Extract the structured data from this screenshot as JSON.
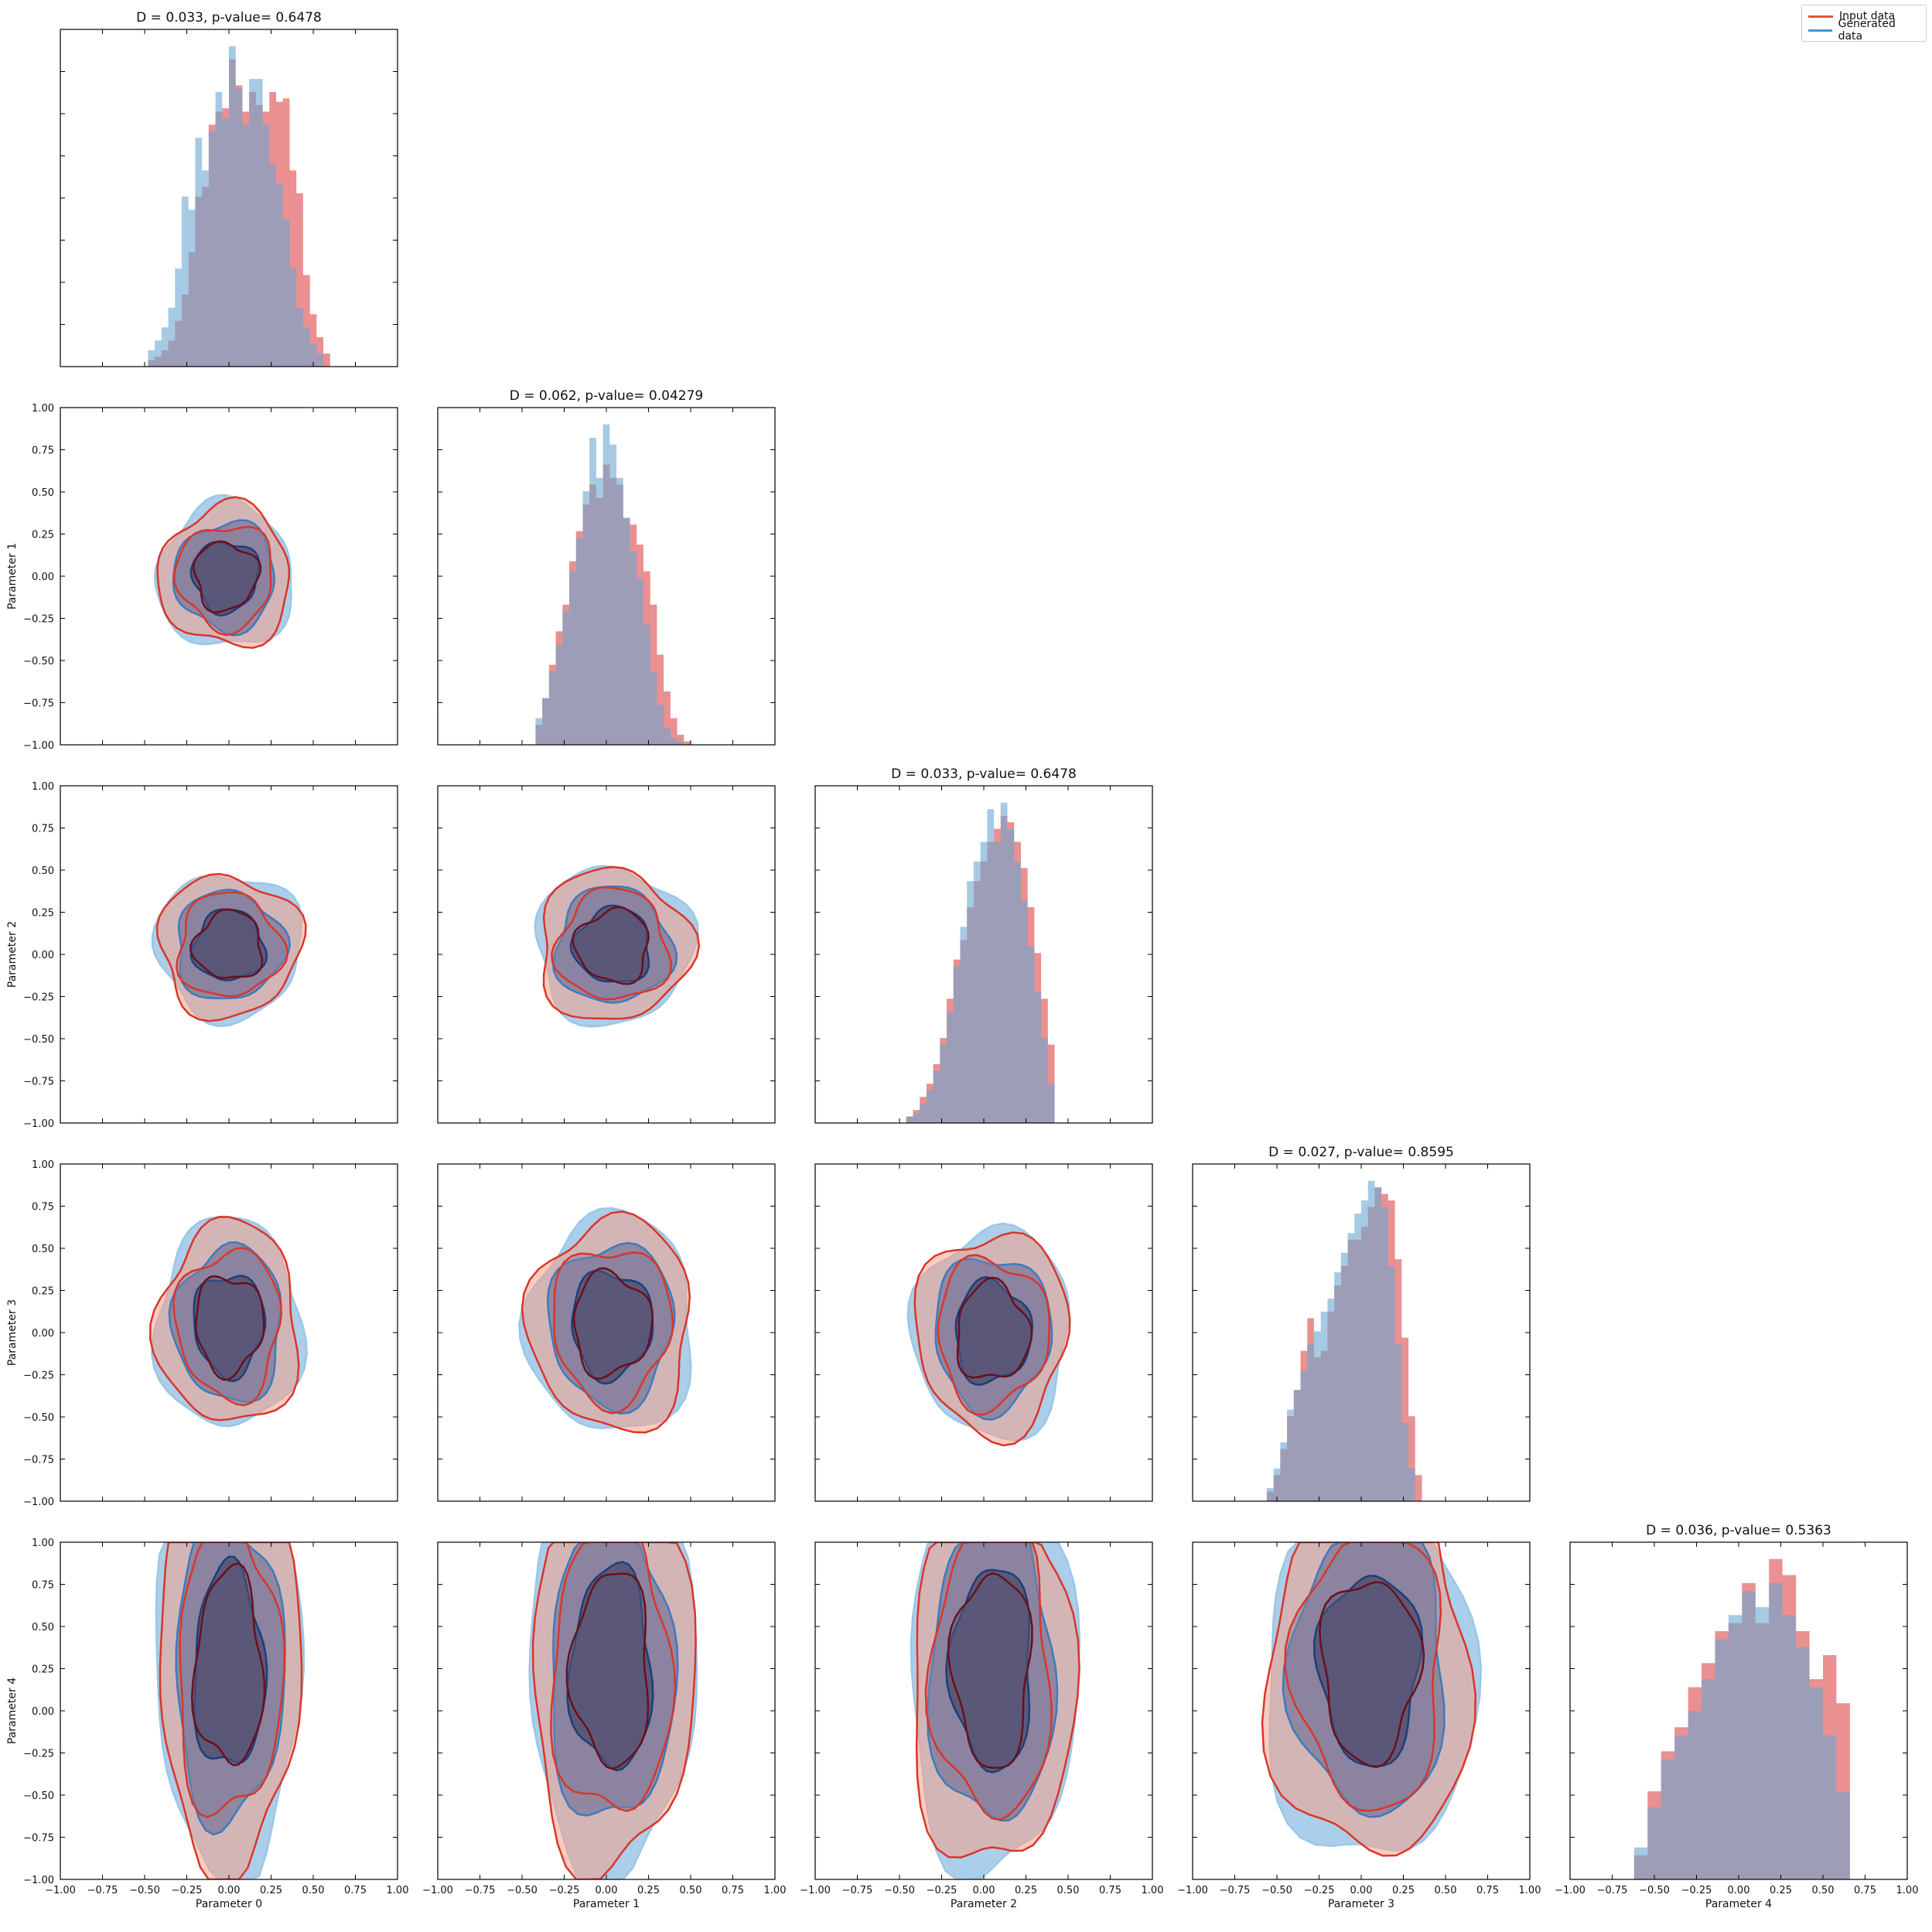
{
  "figure": {
    "legend": [
      {
        "label": "Input data",
        "color": "#e8523a"
      },
      {
        "label": "Generated data",
        "color": "#4a94cc"
      }
    ],
    "axis_labels": [
      "Parameter 0",
      "Parameter 1",
      "Parameter 2",
      "Parameter 3",
      "Parameter 4"
    ],
    "diagonal_titles": [
      "D = 0.033, p-value= 0.6478",
      "D = 0.062, p-value= 0.04279",
      "D = 0.033, p-value= 0.6478",
      "D = 0.027, p-value= 0.8595",
      "D = 0.036, p-value= 0.5363"
    ],
    "tick_labels": [
      "−1.00",
      "−0.75",
      "−0.50",
      "−0.25",
      "0.00",
      "0.25",
      "0.50",
      "0.75",
      "1.00"
    ],
    "colors": {
      "input_hist": "#e67c7c",
      "generated_hist": "#6aa6d2",
      "overlap": "#857f9e",
      "input_contour_light": "#f5a08a",
      "input_contour_mid": "#d9362a",
      "input_contour_dark": "#6b0f1a",
      "gen_contour_light": "#9cc6e6",
      "gen_contour_mid": "#3c7bbd",
      "gen_contour_dark": "#1b3f78",
      "core_fill": "#5a5577"
    }
  },
  "chart_data": {
    "type": "corner",
    "n_params": 5,
    "xlim": [
      -1,
      1
    ],
    "ylim": [
      -1,
      1
    ],
    "ticks": [
      -1,
      -0.75,
      -0.5,
      -0.25,
      0,
      0.25,
      0.5,
      0.75,
      1
    ],
    "diagonal": [
      {
        "param": "Parameter 0",
        "bin_width": 0.04,
        "input": [
          0.02,
          0.03,
          0.05,
          0.08,
          0.14,
          0.22,
          0.35,
          0.52,
          0.55,
          0.74,
          0.78,
          0.79,
          0.94,
          0.86,
          0.78,
          0.84,
          0.8,
          0.78,
          0.84,
          0.81,
          0.82,
          0.6,
          0.53,
          0.28,
          0.16,
          0.09,
          0.04
        ],
        "generated": [
          0.05,
          0.08,
          0.12,
          0.18,
          0.3,
          0.52,
          0.48,
          0.7,
          0.6,
          0.72,
          0.84,
          0.76,
          0.98,
          0.85,
          0.74,
          0.88,
          0.88,
          0.74,
          0.62,
          0.56,
          0.45,
          0.3,
          0.18,
          0.12,
          0.07,
          0.04
        ],
        "x_start": -0.48
      },
      {
        "param": "Parameter 1",
        "bin_width": 0.04,
        "input": [
          0.06,
          0.14,
          0.24,
          0.34,
          0.42,
          0.55,
          0.64,
          0.72,
          0.78,
          0.74,
          0.84,
          0.8,
          0.78,
          0.68,
          0.66,
          0.6,
          0.52,
          0.42,
          0.27,
          0.16,
          0.08,
          0.03,
          0.01
        ],
        "generated": [
          0.08,
          0.14,
          0.22,
          0.3,
          0.4,
          0.52,
          0.62,
          0.76,
          0.92,
          0.8,
          0.96,
          0.9,
          0.8,
          0.68,
          0.58,
          0.5,
          0.36,
          0.22,
          0.12,
          0.05,
          0.02,
          0.01
        ],
        "x_start": -0.42
      },
      {
        "param": "Parameter 2",
        "bin_width": 0.04,
        "input": [
          0.02,
          0.04,
          0.08,
          0.12,
          0.18,
          0.26,
          0.38,
          0.5,
          0.56,
          0.66,
          0.74,
          0.8,
          0.86,
          0.9,
          0.94,
          0.92,
          0.86,
          0.78,
          0.66,
          0.52,
          0.38,
          0.24
        ],
        "generated": [
          0.02,
          0.03,
          0.06,
          0.1,
          0.16,
          0.24,
          0.34,
          0.48,
          0.6,
          0.74,
          0.8,
          0.86,
          0.96,
          0.86,
          0.98,
          0.9,
          0.8,
          0.68,
          0.54,
          0.4,
          0.26,
          0.12
        ],
        "x_start": -0.46
      },
      {
        "param": "Parameter 3",
        "bin_width": 0.04,
        "input": [
          0.03,
          0.08,
          0.16,
          0.26,
          0.34,
          0.46,
          0.56,
          0.44,
          0.46,
          0.58,
          0.66,
          0.72,
          0.8,
          0.8,
          0.84,
          0.9,
          0.96,
          0.94,
          0.92,
          0.74,
          0.5,
          0.26,
          0.08
        ],
        "generated": [
          0.04,
          0.1,
          0.18,
          0.28,
          0.34,
          0.4,
          0.48,
          0.52,
          0.58,
          0.62,
          0.7,
          0.76,
          0.82,
          0.88,
          0.92,
          0.98,
          0.96,
          0.9,
          0.72,
          0.48,
          0.24,
          0.1
        ],
        "x_start": -0.56
      },
      {
        "param": "Parameter 4",
        "bin_width": 0.08,
        "input": [
          0.06,
          0.22,
          0.32,
          0.38,
          0.48,
          0.54,
          0.62,
          0.64,
          0.74,
          0.64,
          0.8,
          0.76,
          0.62,
          0.5,
          0.56,
          0.44
        ],
        "generated": [
          0.08,
          0.18,
          0.3,
          0.36,
          0.42,
          0.5,
          0.6,
          0.66,
          0.72,
          0.68,
          0.74,
          0.66,
          0.58,
          0.48,
          0.36,
          0.22
        ],
        "x_start": -0.62
      }
    ],
    "off_diagonal_contours": [
      {
        "row": 1,
        "col": 0,
        "center": [
          -0.02,
          0.0
        ],
        "spread": [
          0.26,
          0.28
        ]
      },
      {
        "row": 2,
        "col": 0,
        "center": [
          0.0,
          0.05
        ],
        "spread": [
          0.28,
          0.28
        ]
      },
      {
        "row": 2,
        "col": 1,
        "center": [
          0.04,
          0.05
        ],
        "spread": [
          0.3,
          0.3
        ]
      },
      {
        "row": 3,
        "col": 0,
        "center": [
          0.0,
          0.05
        ],
        "spread": [
          0.28,
          0.4
        ]
      },
      {
        "row": 3,
        "col": 1,
        "center": [
          0.03,
          0.05
        ],
        "spread": [
          0.32,
          0.42
        ]
      },
      {
        "row": 3,
        "col": 2,
        "center": [
          0.05,
          0.0
        ],
        "spread": [
          0.3,
          0.4
        ]
      },
      {
        "row": 4,
        "col": 0,
        "center": [
          0.0,
          0.25
        ],
        "spread": [
          0.28,
          0.8
        ]
      },
      {
        "row": 4,
        "col": 1,
        "center": [
          0.03,
          0.25
        ],
        "spread": [
          0.32,
          0.8
        ]
      },
      {
        "row": 4,
        "col": 2,
        "center": [
          0.05,
          0.25
        ],
        "spread": [
          0.32,
          0.8
        ]
      },
      {
        "row": 4,
        "col": 3,
        "center": [
          0.05,
          0.25
        ],
        "spread": [
          0.4,
          0.75
        ]
      }
    ]
  }
}
